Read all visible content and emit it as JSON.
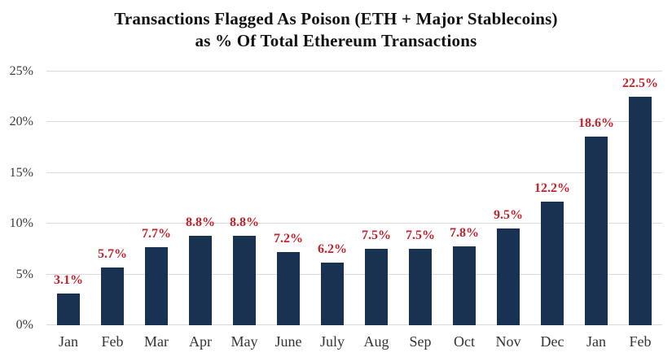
{
  "title_line1": "Transactions Flagged As Poison (ETH + Major Stablecoins)",
  "title_line2": "as % Of Total Ethereum Transactions",
  "colors": {
    "bar": "#1a3252",
    "value_label": "#c6222b",
    "gridline": "#d9d9d9",
    "axis_text": "#3a3a3a",
    "title_text": "#111111"
  },
  "chart_data": {
    "type": "bar",
    "title": "Transactions Flagged As Poison (ETH + Major Stablecoins) as % Of Total Ethereum Transactions",
    "categories": [
      "Jan",
      "Feb",
      "Mar",
      "Apr",
      "May",
      "June",
      "July",
      "Aug",
      "Sep",
      "Oct",
      "Nov",
      "Dec",
      "Jan",
      "Feb"
    ],
    "values": [
      3.1,
      5.7,
      7.7,
      8.8,
      8.8,
      7.2,
      6.2,
      7.5,
      7.5,
      7.8,
      9.5,
      12.2,
      18.6,
      22.5
    ],
    "value_labels": [
      "3.1%",
      "5.7%",
      "7.7%",
      "8.8%",
      "8.8%",
      "7.2%",
      "6.2%",
      "7.5%",
      "7.5%",
      "7.8%",
      "9.5%",
      "12.2%",
      "18.6%",
      "22.5%"
    ],
    "xlabel": "",
    "ylabel": "",
    "ylim": [
      0,
      25
    ],
    "yticks": [
      0,
      5,
      10,
      15,
      20,
      25
    ],
    "ytick_labels": [
      "0%",
      "5%",
      "10%",
      "15%",
      "20%",
      "25%"
    ],
    "grid": "horizontal",
    "legend_position": "none"
  }
}
